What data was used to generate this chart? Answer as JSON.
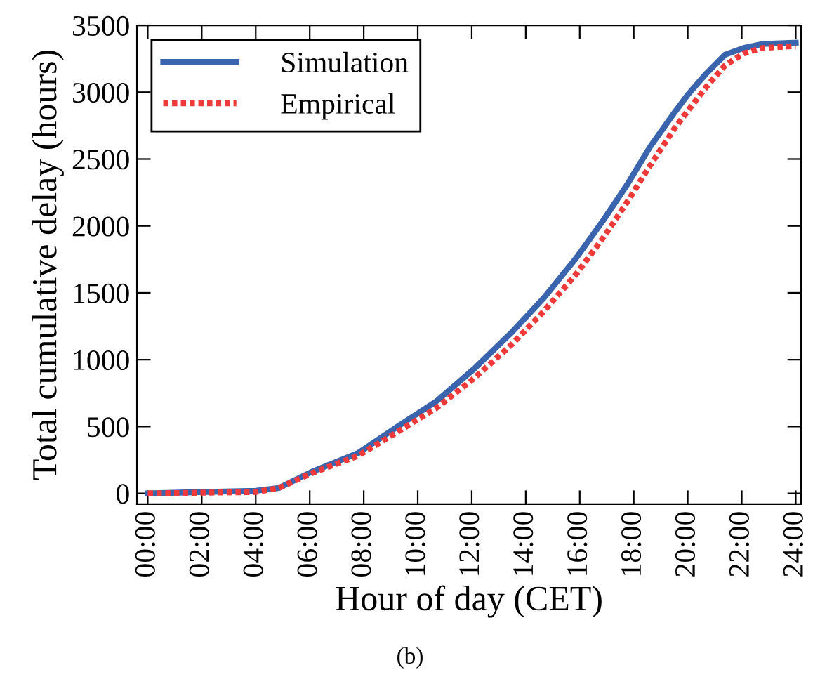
{
  "chart_data": {
    "type": "line",
    "xlabel": "Hour of day (CET)",
    "ylabel": "Total cumulative delay (hours)",
    "annotations": [
      "(b)"
    ],
    "xlim": [
      -0.4,
      24.2
    ],
    "ylim": [
      -80,
      3500
    ],
    "xticks": [
      {
        "value": 0,
        "label": "00:00"
      },
      {
        "value": 2,
        "label": "02:00"
      },
      {
        "value": 4,
        "label": "04:00"
      },
      {
        "value": 6,
        "label": "06:00"
      },
      {
        "value": 8,
        "label": "08:00"
      },
      {
        "value": 10,
        "label": "10:00"
      },
      {
        "value": 12,
        "label": "12:00"
      },
      {
        "value": 14,
        "label": "14:00"
      },
      {
        "value": 16,
        "label": "16:00"
      },
      {
        "value": 18,
        "label": "18:00"
      },
      {
        "value": 20,
        "label": "20:00"
      },
      {
        "value": 22,
        "label": "22:00"
      },
      {
        "value": 24,
        "label": "24:00"
      }
    ],
    "yticks": [
      0,
      500,
      1000,
      1500,
      2000,
      2500,
      3000,
      3500
    ],
    "x": [
      0,
      4,
      4.85,
      6.06,
      7.78,
      9.33,
      10.7,
      12.08,
      13.46,
      14.66,
      15.87,
      16.9,
      17.76,
      18.6,
      19.48,
      20.0,
      20.69,
      21.38,
      22.07,
      22.75,
      24
    ],
    "series": [
      {
        "name": "Simulation",
        "color": "#3a64ad",
        "line_style": "solid",
        "values": [
          0,
          20,
          40,
          160,
          300,
          510,
          690,
          930,
          1200,
          1460,
          1760,
          2050,
          2310,
          2590,
          2840,
          2980,
          3140,
          3280,
          3330,
          3360,
          3370
        ]
      },
      {
        "name": "Empirical",
        "color": "#f03a3a",
        "line_style": "dotted",
        "values": [
          0,
          10,
          40,
          150,
          280,
          470,
          640,
          860,
          1110,
          1360,
          1640,
          1920,
          2180,
          2450,
          2720,
          2860,
          3040,
          3200,
          3290,
          3330,
          3345
        ]
      }
    ],
    "legend": "top left",
    "grid": false,
    "marker": "none"
  }
}
